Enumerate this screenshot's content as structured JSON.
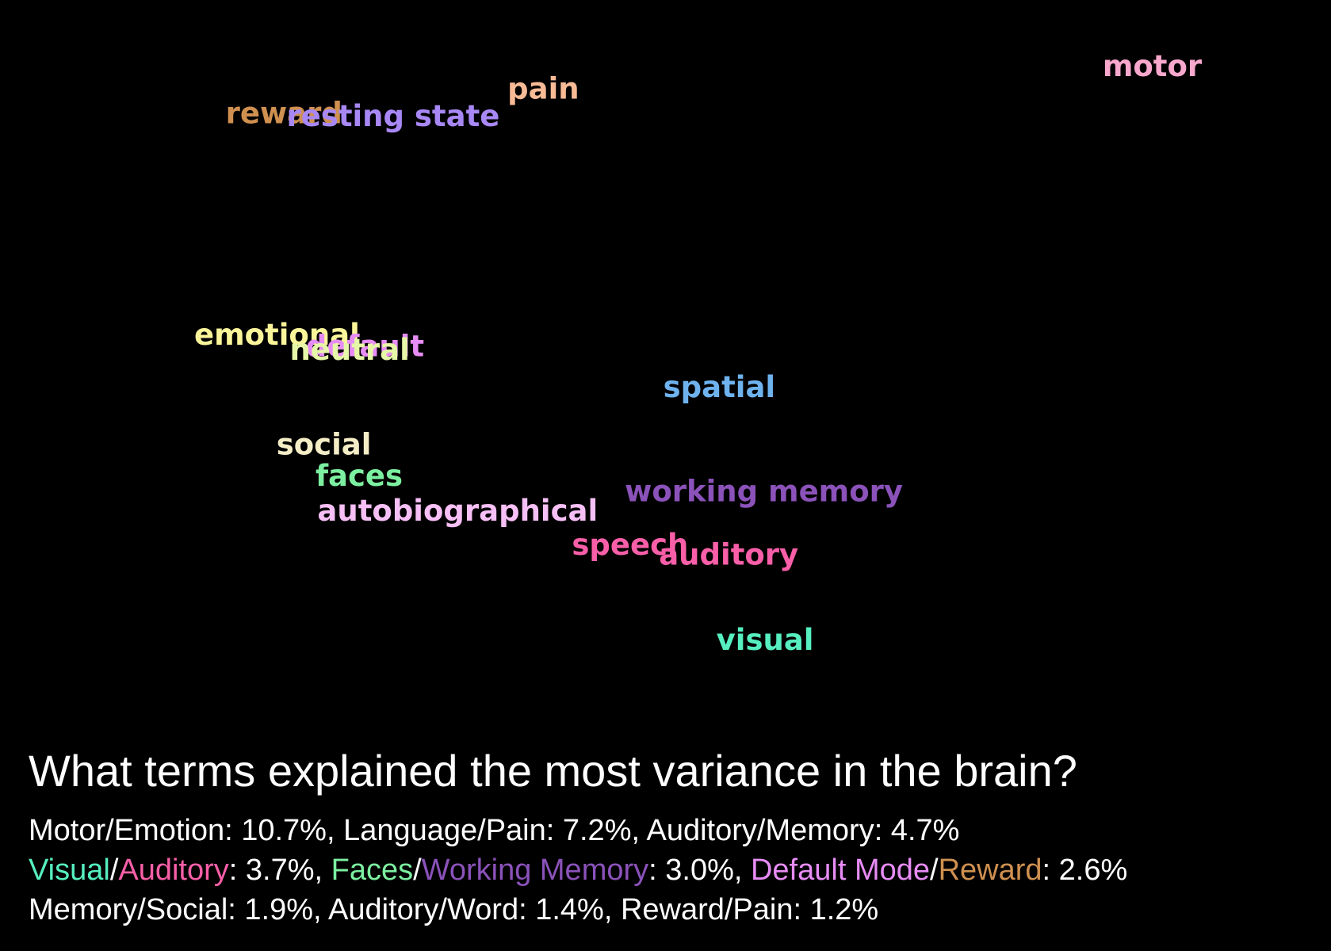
{
  "chart_data": {
    "type": "scatter",
    "title": "",
    "xlabel": "",
    "ylabel": "",
    "xlim": [
      0,
      100
    ],
    "ylim": [
      0,
      100
    ],
    "grid": false,
    "points": [
      {
        "label": "motor",
        "x": 90.1,
        "y": 94.7,
        "color": "#f7a8cc"
      },
      {
        "label": "pain",
        "x": 38.2,
        "y": 91.4,
        "color": "#f8bb96"
      },
      {
        "label": "reward",
        "x": 16.1,
        "y": 87.8,
        "color": "#cf9050"
      },
      {
        "label": "resting state",
        "x": 25.4,
        "y": 87.4,
        "color": "#a888f5"
      },
      {
        "label": "emotional",
        "x": 15.5,
        "y": 55.3,
        "color": "#fbf59a"
      },
      {
        "label": "default",
        "x": 23.0,
        "y": 53.6,
        "color": "#e78cf5"
      },
      {
        "label": "neutral",
        "x": 21.7,
        "y": 53.1,
        "color": "#e6f7a8"
      },
      {
        "label": "spatial",
        "x": 53.2,
        "y": 47.6,
        "color": "#6eb2ee"
      },
      {
        "label": "social",
        "x": 19.5,
        "y": 39.2,
        "color": "#f5edc6"
      },
      {
        "label": "faces",
        "x": 22.5,
        "y": 34.6,
        "color": "#7cefa0"
      },
      {
        "label": "working memory",
        "x": 57.0,
        "y": 32.3,
        "color": "#8b52ba"
      },
      {
        "label": "autobiographical",
        "x": 30.9,
        "y": 29.5,
        "color": "#f6bff5"
      },
      {
        "label": "speech",
        "x": 45.6,
        "y": 24.5,
        "color": "#f95fa8"
      },
      {
        "label": "auditory",
        "x": 54.0,
        "y": 23.0,
        "color": "#f95fa8"
      },
      {
        "label": "visual",
        "x": 57.1,
        "y": 10.5,
        "color": "#56efbf"
      }
    ]
  },
  "caption": {
    "title": "What terms explained the most variance in the brain?",
    "lines": [
      [
        {
          "text": "Motor/Emotion: 10.7%, Language/Pain: 7.2%, Auditory/Memory: 4.7%",
          "color": "#ffffff"
        }
      ],
      [
        {
          "text": "Visual",
          "color": "#56efbf"
        },
        {
          "text": "/",
          "color": "#ffffff"
        },
        {
          "text": "Auditory",
          "color": "#f95fa8"
        },
        {
          "text": ": 3.7%, ",
          "color": "#ffffff"
        },
        {
          "text": "Faces",
          "color": "#7cefa0"
        },
        {
          "text": "/",
          "color": "#ffffff"
        },
        {
          "text": "Working Memory",
          "color": "#8b52ba"
        },
        {
          "text": ": 3.0%, ",
          "color": "#ffffff"
        },
        {
          "text": "Default Mode",
          "color": "#e78cf5"
        },
        {
          "text": "/",
          "color": "#ffffff"
        },
        {
          "text": "Reward",
          "color": "#cf9050"
        },
        {
          "text": ": 2.6%",
          "color": "#ffffff"
        }
      ],
      [
        {
          "text": "Memory/Social: 1.9%, Auditory/Word: 1.4%, Reward/Pain: 1.2%",
          "color": "#ffffff"
        }
      ]
    ]
  }
}
